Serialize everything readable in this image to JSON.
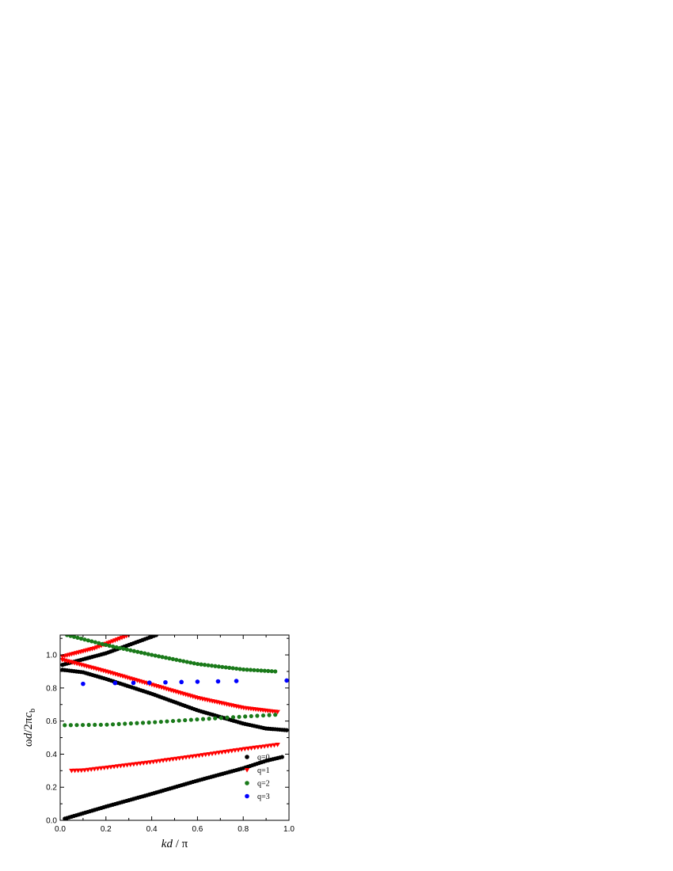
{
  "chart_data": {
    "type": "scatter",
    "title": "",
    "xlabel": {
      "italic": "kd",
      "rest": " / π"
    },
    "ylabel": {
      "main": "ωd/2πc",
      "italic_part": "d",
      "subscript": "b"
    },
    "xlim": [
      0.0,
      1.0
    ],
    "ylim": [
      0.0,
      1.12
    ],
    "xticks": [
      "0.0",
      "0.2",
      "0.4",
      "0.6",
      "0.8",
      "1.0"
    ],
    "yticks": [
      "0.0",
      "0.2",
      "0.4",
      "0.6",
      "0.8",
      "1.0"
    ],
    "legend_position": "bottom-right",
    "grid": false,
    "series": [
      {
        "name": "q=0",
        "color": "#000000",
        "marker": "circle",
        "bands": [
          {
            "x0": 0.02,
            "x1": 0.97,
            "n": 96,
            "points": [
              [
                0.02,
                0.01
              ],
              [
                0.2,
                0.083
              ],
              [
                0.4,
                0.16
              ],
              [
                0.6,
                0.24
              ],
              [
                0.8,
                0.315
              ],
              [
                0.9,
                0.36
              ],
              [
                0.97,
                0.383
              ]
            ]
          },
          {
            "x0": 0.01,
            "x1": 0.99,
            "n": 98,
            "points": [
              [
                0.01,
                0.91
              ],
              [
                0.1,
                0.895
              ],
              [
                0.2,
                0.855
              ],
              [
                0.4,
                0.765
              ],
              [
                0.6,
                0.665
              ],
              [
                0.8,
                0.585
              ],
              [
                0.9,
                0.555
              ],
              [
                0.99,
                0.545
              ]
            ]
          },
          {
            "x0": 0.01,
            "x1": 0.42,
            "n": 42,
            "points": [
              [
                0.01,
                0.94
              ],
              [
                0.2,
                1.01
              ],
              [
                0.42,
                1.12
              ]
            ]
          }
        ]
      },
      {
        "name": "q=1",
        "color": "#ff0000",
        "marker": "triangle-down",
        "bands": [
          {
            "x0": 0.05,
            "x1": 0.95,
            "n": 64,
            "points": [
              [
                0.05,
                0.3
              ],
              [
                0.1,
                0.302
              ],
              [
                0.2,
                0.318
              ],
              [
                0.4,
                0.352
              ],
              [
                0.6,
                0.39
              ],
              [
                0.8,
                0.43
              ],
              [
                0.95,
                0.457
              ]
            ]
          },
          {
            "x0": 0.01,
            "x1": 0.95,
            "n": 90,
            "points": [
              [
                0.01,
                0.97
              ],
              [
                0.2,
                0.9
              ],
              [
                0.4,
                0.82
              ],
              [
                0.6,
                0.74
              ],
              [
                0.8,
                0.68
              ],
              [
                0.95,
                0.655
              ]
            ]
          },
          {
            "x0": 0.01,
            "x1": 0.3,
            "n": 30,
            "points": [
              [
                0.01,
                0.99
              ],
              [
                0.15,
                1.04
              ],
              [
                0.3,
                1.12
              ]
            ]
          }
        ]
      },
      {
        "name": "q=2",
        "color": "#1a7a1a",
        "marker": "circle",
        "bands": [
          {
            "x0": 0.02,
            "x1": 0.94,
            "n": 36,
            "points": [
              [
                0.02,
                0.575
              ],
              [
                0.2,
                0.578
              ],
              [
                0.4,
                0.592
              ],
              [
                0.6,
                0.61
              ],
              [
                0.8,
                0.627
              ],
              [
                0.94,
                0.638
              ]
            ]
          },
          {
            "x0": 0.03,
            "x1": 0.94,
            "n": 60,
            "points": [
              [
                0.03,
                1.12
              ],
              [
                0.2,
                1.06
              ],
              [
                0.4,
                1.0
              ],
              [
                0.6,
                0.945
              ],
              [
                0.8,
                0.912
              ],
              [
                0.94,
                0.9
              ]
            ]
          }
        ]
      },
      {
        "name": "q=3",
        "color": "#0000ff",
        "marker": "circle",
        "bands": [
          {
            "values": [
              [
                0.1,
                0.825
              ],
              [
                0.24,
                0.83
              ],
              [
                0.32,
                0.831
              ],
              [
                0.39,
                0.832
              ],
              [
                0.46,
                0.834
              ],
              [
                0.53,
                0.836
              ],
              [
                0.6,
                0.838
              ],
              [
                0.69,
                0.84
              ],
              [
                0.77,
                0.842
              ],
              [
                0.99,
                0.845
              ]
            ]
          }
        ]
      }
    ]
  }
}
